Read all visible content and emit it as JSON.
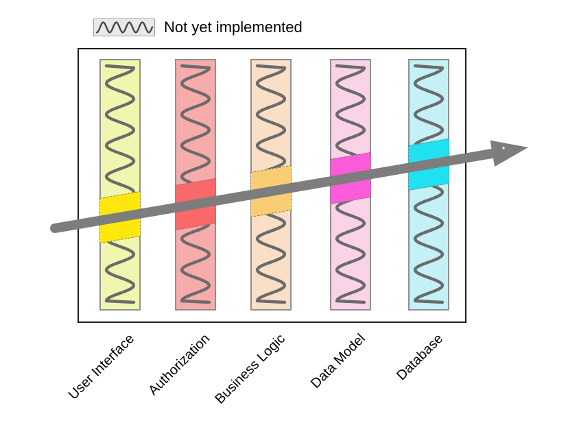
{
  "legend": {
    "label": "Not yet implemented",
    "swatch_icon": "squiggle-icon"
  },
  "diagram": {
    "layers": [
      {
        "name": "User Interface",
        "bar_fill": "#f1f6ae",
        "slice_fill": "#ffe70d"
      },
      {
        "name": "Authorization",
        "bar_fill": "#f7abab",
        "slice_fill": "#f96969"
      },
      {
        "name": "Business Logic",
        "bar_fill": "#f9dfc5",
        "slice_fill": "#f9cd74"
      },
      {
        "name": "Data Model",
        "bar_fill": "#fbd3e9",
        "slice_fill": "#fb5cd9"
      },
      {
        "name": "Database",
        "bar_fill": "#c3f1f5",
        "slice_fill": "#1fe1f2"
      }
    ]
  },
  "colors": {
    "arrow": "#7d7d7d",
    "bar_border": "#8f8f8f",
    "squiggle": "#6b6b6b",
    "legend_squiggle": "#474747",
    "legend_box_fill": "#e9e9e9",
    "legend_box_border": "#9e9e9e",
    "slice_border": "#7a7a7a",
    "frame_border": "#1c1c1c",
    "label_text": "#000000"
  }
}
